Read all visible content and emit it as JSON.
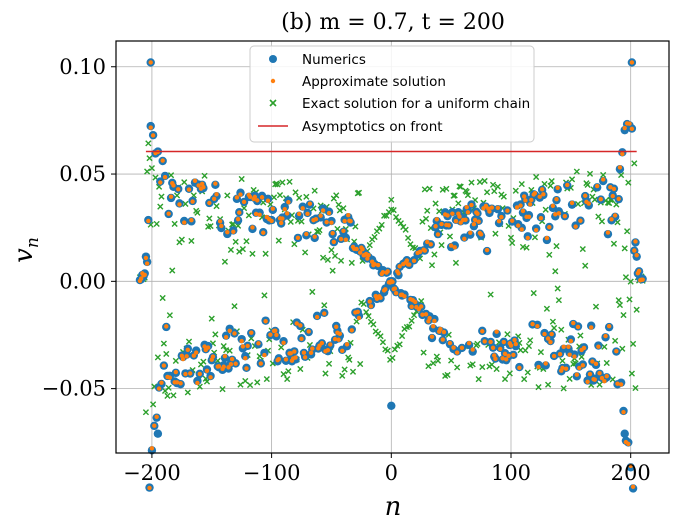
{
  "chart_data": {
    "type": "scatter",
    "title": "(b)    m = 0.7,  t = 200",
    "xlabel": "n",
    "ylabel": "v_n",
    "ylabel_main": "v",
    "ylabel_sub": "n",
    "xlim": [
      -230,
      232
    ],
    "ylim": [
      -0.08,
      0.112
    ],
    "xticks": [
      -200,
      -100,
      0,
      100,
      200
    ],
    "xtick_labels": [
      "−200",
      "−100",
      "0",
      "100",
      "200"
    ],
    "yticks": [
      -0.05,
      0.0,
      0.05,
      0.1
    ],
    "ytick_labels": [
      "−0.05",
      "0.00",
      "0.05",
      "0.10"
    ],
    "grid": true,
    "legend_position": "top-center",
    "colors": {
      "numerics": "#1f77b4",
      "approximate": "#ff7f0e",
      "exact": "#2ca02c",
      "asymptotic": "#d62728"
    },
    "series": [
      {
        "name": "Numerics",
        "marker": "circle",
        "color": "#1f77b4"
      },
      {
        "name": "Approximate solution",
        "marker": "dot",
        "color": "#ff7f0e"
      },
      {
        "name": "Exact solution for a uniform chain",
        "marker": "x",
        "color": "#2ca02c"
      },
      {
        "name": "Asymptotics on front",
        "marker": "line",
        "color": "#d62728",
        "x": [
          -205,
          205
        ],
        "y": [
          0.0605,
          0.0605
        ]
      }
    ],
    "sample_points": {
      "peak_left": {
        "n": -201,
        "v": 0.102
      },
      "peak_right": {
        "n": 201,
        "v": 0.102
      },
      "min_left": {
        "n": -195,
        "v": -0.071
      },
      "min_right": {
        "n": 195,
        "v": -0.071
      },
      "center_min": {
        "n": 0,
        "v": -0.058
      },
      "center_exact_max": {
        "n": 0,
        "v": 0.038
      }
    }
  }
}
